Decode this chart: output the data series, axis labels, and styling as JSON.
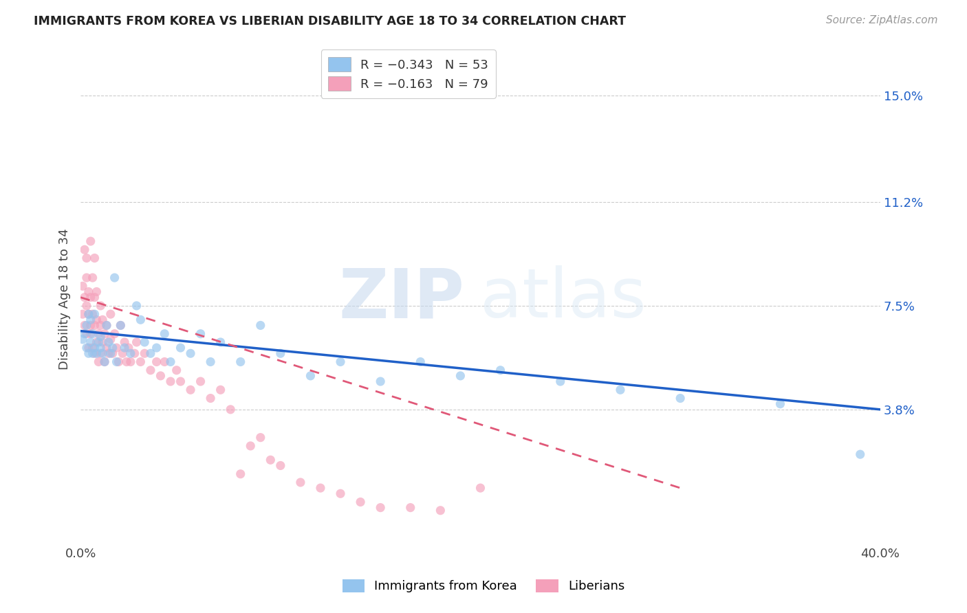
{
  "title": "IMMIGRANTS FROM KOREA VS LIBERIAN DISABILITY AGE 18 TO 34 CORRELATION CHART",
  "source": "Source: ZipAtlas.com",
  "ylabel": "Disability Age 18 to 34",
  "yticks": [
    "15.0%",
    "11.2%",
    "7.5%",
    "3.8%"
  ],
  "ytick_vals": [
    0.15,
    0.112,
    0.075,
    0.038
  ],
  "xlim": [
    0.0,
    0.4
  ],
  "ylim": [
    -0.01,
    0.165
  ],
  "legend_korea_R": "R = −0.343",
  "legend_korea_N": "N = 53",
  "legend_liberia_R": "R = −0.163",
  "legend_liberia_N": "N = 79",
  "korea_color": "#94C4EE",
  "liberia_color": "#F4A0BA",
  "korea_line_color": "#2060C8",
  "liberia_line_color": "#E05878",
  "watermark_zip": "ZIP",
  "watermark_atlas": "atlas",
  "background_color": "#FFFFFF",
  "grid_color": "#CCCCCC",
  "scatter_alpha": 0.65,
  "scatter_size": 90,
  "korea_points_x": [
    0.001,
    0.002,
    0.003,
    0.003,
    0.004,
    0.004,
    0.005,
    0.005,
    0.006,
    0.006,
    0.007,
    0.007,
    0.008,
    0.009,
    0.01,
    0.01,
    0.011,
    0.012,
    0.013,
    0.014,
    0.015,
    0.016,
    0.017,
    0.018,
    0.02,
    0.022,
    0.025,
    0.028,
    0.03,
    0.032,
    0.035,
    0.038,
    0.042,
    0.045,
    0.05,
    0.055,
    0.06,
    0.065,
    0.07,
    0.08,
    0.09,
    0.1,
    0.115,
    0.13,
    0.15,
    0.17,
    0.19,
    0.21,
    0.24,
    0.27,
    0.3,
    0.35,
    0.39
  ],
  "korea_points_y": [
    0.063,
    0.065,
    0.06,
    0.068,
    0.058,
    0.072,
    0.062,
    0.07,
    0.058,
    0.065,
    0.06,
    0.072,
    0.058,
    0.062,
    0.064,
    0.06,
    0.058,
    0.055,
    0.068,
    0.062,
    0.058,
    0.06,
    0.085,
    0.055,
    0.068,
    0.06,
    0.058,
    0.075,
    0.07,
    0.062,
    0.058,
    0.06,
    0.065,
    0.055,
    0.06,
    0.058,
    0.065,
    0.055,
    0.062,
    0.055,
    0.068,
    0.058,
    0.05,
    0.055,
    0.048,
    0.055,
    0.05,
    0.052,
    0.048,
    0.045,
    0.042,
    0.04,
    0.022
  ],
  "liberia_points_x": [
    0.001,
    0.001,
    0.002,
    0.002,
    0.002,
    0.003,
    0.003,
    0.003,
    0.003,
    0.004,
    0.004,
    0.004,
    0.005,
    0.005,
    0.005,
    0.005,
    0.006,
    0.006,
    0.006,
    0.007,
    0.007,
    0.007,
    0.007,
    0.008,
    0.008,
    0.008,
    0.009,
    0.009,
    0.01,
    0.01,
    0.01,
    0.011,
    0.011,
    0.012,
    0.012,
    0.013,
    0.013,
    0.014,
    0.015,
    0.015,
    0.016,
    0.017,
    0.018,
    0.019,
    0.02,
    0.021,
    0.022,
    0.023,
    0.024,
    0.025,
    0.027,
    0.028,
    0.03,
    0.032,
    0.035,
    0.038,
    0.04,
    0.042,
    0.045,
    0.048,
    0.05,
    0.055,
    0.06,
    0.065,
    0.07,
    0.075,
    0.08,
    0.085,
    0.09,
    0.095,
    0.1,
    0.11,
    0.12,
    0.13,
    0.14,
    0.15,
    0.165,
    0.18,
    0.2
  ],
  "liberia_points_y": [
    0.072,
    0.082,
    0.068,
    0.078,
    0.095,
    0.065,
    0.075,
    0.085,
    0.092,
    0.06,
    0.072,
    0.08,
    0.065,
    0.078,
    0.068,
    0.098,
    0.06,
    0.072,
    0.085,
    0.058,
    0.068,
    0.078,
    0.092,
    0.062,
    0.07,
    0.08,
    0.055,
    0.065,
    0.058,
    0.068,
    0.075,
    0.062,
    0.07,
    0.055,
    0.065,
    0.06,
    0.068,
    0.058,
    0.063,
    0.072,
    0.058,
    0.065,
    0.06,
    0.055,
    0.068,
    0.058,
    0.062,
    0.055,
    0.06,
    0.055,
    0.058,
    0.062,
    0.055,
    0.058,
    0.052,
    0.055,
    0.05,
    0.055,
    0.048,
    0.052,
    0.048,
    0.045,
    0.048,
    0.042,
    0.045,
    0.038,
    0.015,
    0.025,
    0.028,
    0.02,
    0.018,
    0.012,
    0.01,
    0.008,
    0.005,
    0.003,
    0.003,
    0.002,
    0.01
  ],
  "korea_line_x0": 0.0,
  "korea_line_y0": 0.066,
  "korea_line_x1": 0.4,
  "korea_line_y1": 0.038,
  "liberia_line_x0": 0.0,
  "liberia_line_y0": 0.078,
  "liberia_line_x1": 0.3,
  "liberia_line_y1": 0.01
}
